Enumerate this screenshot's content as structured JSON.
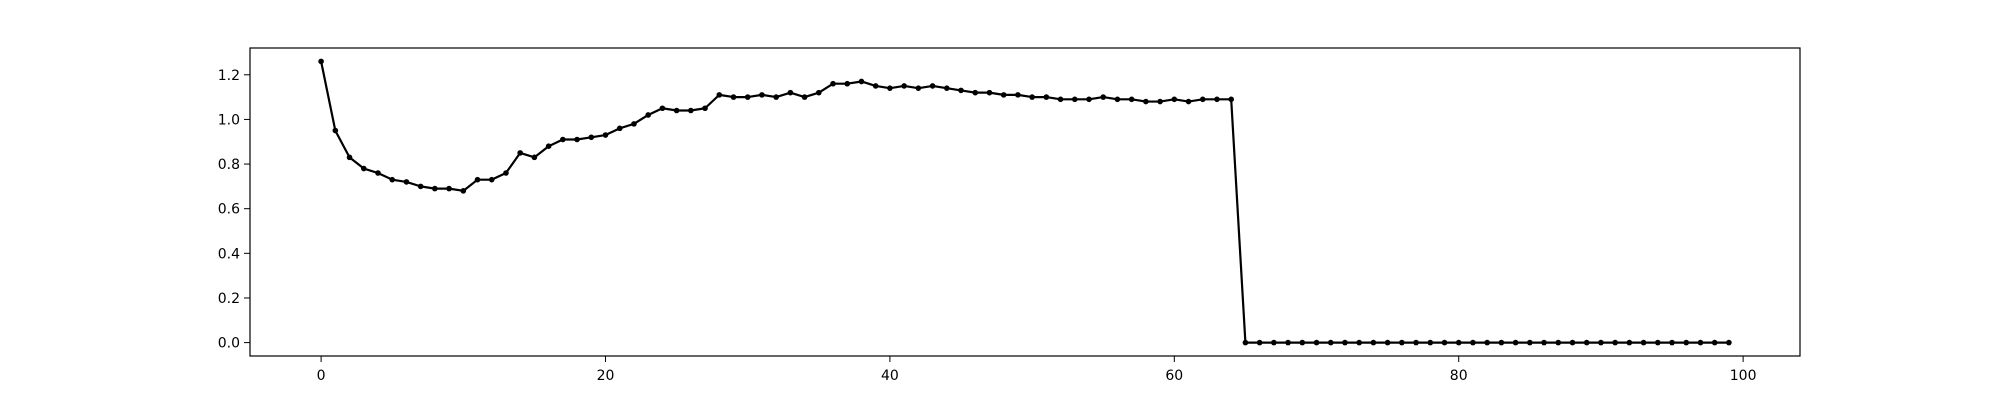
{
  "chart_data": {
    "type": "line",
    "title": "",
    "xlabel": "",
    "ylabel": "",
    "xlim": [
      -5,
      104
    ],
    "ylim": [
      -0.06,
      1.32
    ],
    "xticks": [
      0,
      20,
      40,
      60,
      80,
      100
    ],
    "yticks": [
      0.0,
      0.2,
      0.4,
      0.6,
      0.8,
      1.0,
      1.2
    ],
    "xtick_labels": [
      "0",
      "20",
      "40",
      "60",
      "80",
      "100"
    ],
    "ytick_labels": [
      "0.0",
      "0.2",
      "0.4",
      "0.6",
      "0.8",
      "1.0",
      "1.2"
    ],
    "grid": false,
    "colors": {
      "line": "#000000",
      "marker": "#000000"
    },
    "series": [
      {
        "x": [
          0,
          1,
          2,
          3,
          4,
          5,
          6,
          7,
          8,
          9,
          10,
          11,
          12,
          13,
          14,
          15,
          16,
          17,
          18,
          19,
          20,
          21,
          22,
          23,
          24,
          25,
          26,
          27,
          28,
          29,
          30,
          31,
          32,
          33,
          34,
          35,
          36,
          37,
          38,
          39,
          40,
          41,
          42,
          43,
          44,
          45,
          46,
          47,
          48,
          49,
          50,
          51,
          52,
          53,
          54,
          55,
          56,
          57,
          58,
          59,
          60,
          61,
          62,
          63,
          64,
          65,
          66,
          67,
          68,
          69,
          70,
          71,
          72,
          73,
          74,
          75,
          76,
          77,
          78,
          79,
          80,
          81,
          82,
          83,
          84,
          85,
          86,
          87,
          88,
          89,
          90,
          91,
          92,
          93,
          94,
          95,
          96,
          97,
          98,
          99
        ],
        "values": [
          1.26,
          0.95,
          0.83,
          0.78,
          0.76,
          0.73,
          0.72,
          0.7,
          0.69,
          0.69,
          0.68,
          0.73,
          0.73,
          0.76,
          0.85,
          0.83,
          0.88,
          0.91,
          0.91,
          0.92,
          0.93,
          0.96,
          0.98,
          1.02,
          1.05,
          1.04,
          1.04,
          1.05,
          1.11,
          1.1,
          1.1,
          1.11,
          1.1,
          1.12,
          1.1,
          1.12,
          1.16,
          1.16,
          1.17,
          1.15,
          1.14,
          1.15,
          1.14,
          1.15,
          1.14,
          1.13,
          1.12,
          1.12,
          1.11,
          1.11,
          1.1,
          1.1,
          1.09,
          1.09,
          1.09,
          1.1,
          1.09,
          1.09,
          1.08,
          1.08,
          1.09,
          1.08,
          1.09,
          1.09,
          1.09,
          0.0,
          0.0,
          0.0,
          0.0,
          0.0,
          0.0,
          0.0,
          0.0,
          0.0,
          0.0,
          0.0,
          0.0,
          0.0,
          0.0,
          0.0,
          0.0,
          0.0,
          0.0,
          0.0,
          0.0,
          0.0,
          0.0,
          0.0,
          0.0,
          0.0,
          0.0,
          0.0,
          0.0,
          0.0,
          0.0,
          0.0,
          0.0,
          0.0,
          0.0,
          0.0
        ]
      }
    ]
  }
}
